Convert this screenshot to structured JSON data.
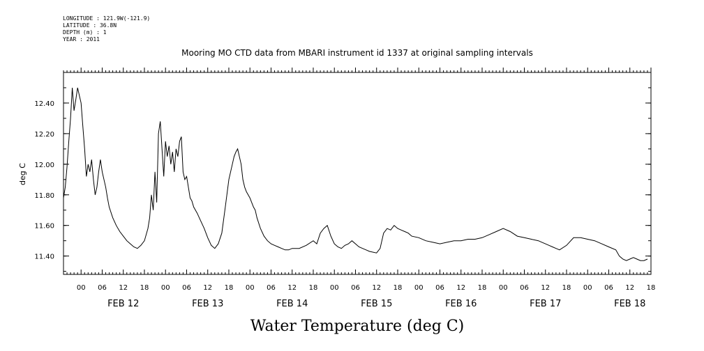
{
  "metadata": [
    "LONGITUDE : 121.9W(-121.9)",
    "LATITUDE : 36.8N",
    "DEPTH (m) : 1",
    "YEAR : 2011"
  ],
  "chart_data": {
    "type": "line",
    "title": "Mooring MO CTD data from MBARI instrument id 1337 at original sampling intervals",
    "xlabel": "Water Temperature (deg C)",
    "ylabel": "deg C",
    "ylim": [
      11.28,
      12.6
    ],
    "yticks": [
      11.4,
      11.6,
      11.8,
      12.0,
      12.2,
      12.4
    ],
    "ytick_labels": [
      "11.40",
      "11.60",
      "11.80",
      "12.00",
      "12.20",
      "12.40"
    ],
    "xlim_hours": [
      -5,
      162
    ],
    "hour_tick_labels": [
      "00",
      "06",
      "12",
      "18",
      "00",
      "06",
      "12",
      "18",
      "00",
      "06",
      "12",
      "18",
      "00",
      "06",
      "12",
      "18",
      "00",
      "06",
      "12",
      "18",
      "00",
      "06",
      "12",
      "18",
      "00",
      "06",
      "12",
      "18"
    ],
    "day_labels": [
      "FEB 12",
      "FEB 13",
      "FEB 14",
      "FEB 15",
      "FEB 16",
      "FEB 17",
      "FEB 18"
    ],
    "grid": false,
    "series": [
      {
        "x": [
          -5,
          -4.5,
          -4,
          -3.5,
          -3,
          -2.5,
          -2,
          -1.5,
          -1,
          -0.5,
          0,
          0.5,
          1,
          1.5,
          2,
          2.5,
          3,
          3.5,
          4,
          4.5,
          5,
          5.5,
          6,
          6.5,
          7,
          7.5,
          8,
          9,
          10,
          11,
          12,
          13,
          14,
          15,
          16,
          17,
          18,
          19,
          19.5,
          20,
          20.5,
          21,
          21.5,
          22,
          22.5,
          23,
          23.5,
          24,
          24.5,
          25,
          25.5,
          26,
          26.5,
          27,
          27.5,
          28,
          28.5,
          29,
          29.5,
          30,
          30.5,
          31,
          31.5,
          32,
          33,
          34,
          35,
          36,
          37,
          38,
          39,
          40,
          41,
          42,
          43,
          43.5,
          44,
          44.5,
          45,
          45.5,
          46,
          46.5,
          47,
          47.5,
          48,
          48.5,
          49,
          49.5,
          50,
          51,
          52,
          53,
          54,
          55,
          56,
          57,
          58,
          59,
          60,
          62,
          64,
          66,
          67,
          68,
          69,
          70,
          71,
          72,
          72.5,
          73,
          74,
          75,
          76,
          77,
          78,
          79,
          80,
          81,
          82,
          84,
          85,
          86,
          87,
          88,
          89,
          90,
          91,
          92,
          93,
          94,
          96,
          98,
          100,
          102,
          104,
          106,
          108,
          110,
          112,
          114,
          116,
          118,
          120,
          122,
          124,
          126,
          128,
          130,
          131,
          132,
          133,
          134,
          135,
          136,
          138,
          140,
          142,
          144,
          146,
          148,
          150,
          152,
          153,
          154,
          155,
          156,
          157,
          158,
          159,
          160,
          161
        ],
        "y": [
          11.78,
          11.85,
          11.98,
          12.15,
          12.3,
          12.5,
          12.35,
          12.42,
          12.5,
          12.45,
          12.4,
          12.25,
          12.1,
          11.92,
          12.0,
          11.95,
          12.03,
          11.9,
          11.8,
          11.85,
          11.95,
          12.03,
          11.95,
          11.9,
          11.85,
          11.78,
          11.72,
          11.65,
          11.6,
          11.56,
          11.53,
          11.5,
          11.48,
          11.46,
          11.45,
          11.47,
          11.5,
          11.58,
          11.65,
          11.8,
          11.7,
          11.95,
          11.75,
          12.2,
          12.28,
          12.1,
          11.92,
          12.15,
          12.05,
          12.12,
          12.0,
          12.08,
          11.95,
          12.1,
          12.05,
          12.15,
          12.18,
          11.95,
          11.9,
          11.92,
          11.85,
          11.78,
          11.76,
          11.72,
          11.68,
          11.63,
          11.58,
          11.52,
          11.47,
          11.45,
          11.48,
          11.55,
          11.72,
          11.9,
          12.0,
          12.05,
          12.08,
          12.1,
          12.05,
          12.0,
          11.9,
          11.85,
          11.82,
          11.8,
          11.78,
          11.75,
          11.72,
          11.7,
          11.65,
          11.58,
          11.53,
          11.5,
          11.48,
          11.47,
          11.46,
          11.45,
          11.44,
          11.44,
          11.45,
          11.45,
          11.47,
          11.5,
          11.48,
          11.55,
          11.58,
          11.6,
          11.53,
          11.48,
          11.47,
          11.46,
          11.45,
          11.47,
          11.48,
          11.5,
          11.48,
          11.46,
          11.45,
          11.44,
          11.43,
          11.42,
          11.45,
          11.55,
          11.58,
          11.57,
          11.6,
          11.58,
          11.57,
          11.56,
          11.55,
          11.53,
          11.52,
          11.5,
          11.49,
          11.48,
          11.49,
          11.5,
          11.5,
          11.51,
          11.51,
          11.52,
          11.54,
          11.56,
          11.58,
          11.56,
          11.53,
          11.52,
          11.51,
          11.5,
          11.49,
          11.48,
          11.47,
          11.46,
          11.45,
          11.44,
          11.47,
          11.52,
          11.52,
          11.51,
          11.5,
          11.48,
          11.46,
          11.44,
          11.4,
          11.38,
          11.37,
          11.38,
          11.39,
          11.38,
          11.37,
          11.37,
          11.38
        ]
      }
    ]
  }
}
